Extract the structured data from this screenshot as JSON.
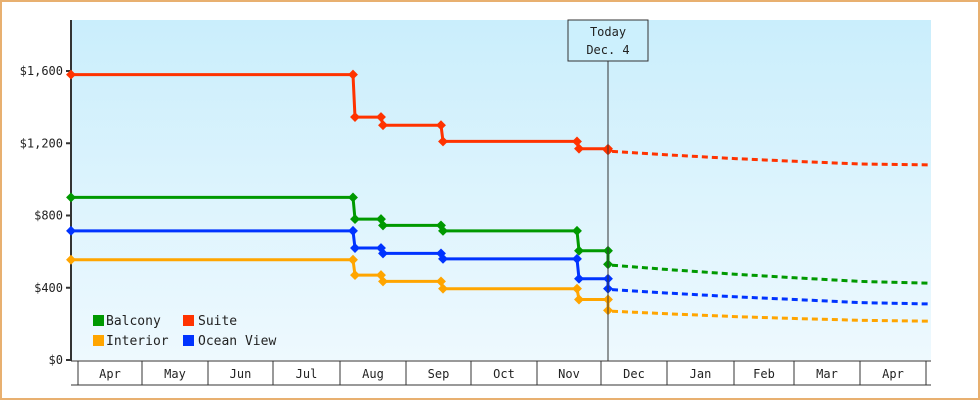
{
  "chart_data": {
    "type": "line",
    "title": "",
    "xlabel": "",
    "ylabel": "",
    "ylim": [
      0,
      1880
    ],
    "y_ticks": [
      "$0",
      "$400",
      "$800",
      "$1,200",
      "$1,600"
    ],
    "y_tick_values": [
      0,
      400,
      800,
      1200,
      1600
    ],
    "x_ticks": [
      "Apr",
      "May",
      "Jun",
      "Jul",
      "Aug",
      "Sep",
      "Oct",
      "Nov",
      "Dec",
      "Jan",
      "Feb",
      "Mar",
      "Apr"
    ],
    "grid": false,
    "legend_position": "bottom-left",
    "today_marker": {
      "line1": "Today",
      "line2": "Dec. 4"
    },
    "series": [
      {
        "name": "Balcony",
        "color": "#009900",
        "historical": [
          {
            "date": "Apr 1",
            "value": 900
          },
          {
            "date": "Aug 7",
            "value": 900
          },
          {
            "date": "Aug 8",
            "value": 780
          },
          {
            "date": "Aug 21",
            "value": 780
          },
          {
            "date": "Aug 22",
            "value": 745
          },
          {
            "date": "Sep 20",
            "value": 745
          },
          {
            "date": "Sep 21",
            "value": 715
          },
          {
            "date": "Nov 18",
            "value": 715
          },
          {
            "date": "Nov 19",
            "value": 605
          },
          {
            "date": "Dec 4",
            "value": 605
          },
          {
            "date": "Dec 4",
            "value": 530
          }
        ],
        "forecast": [
          {
            "date": "Dec 4",
            "value": 525
          },
          {
            "date": "Jan 1",
            "value": 500
          },
          {
            "date": "Feb 1",
            "value": 475
          },
          {
            "date": "Mar 1",
            "value": 455
          },
          {
            "date": "Apr 1",
            "value": 435
          },
          {
            "date": "Apr 15",
            "value": 425
          }
        ]
      },
      {
        "name": "Suite",
        "color": "#ff3300",
        "historical": [
          {
            "date": "Apr 1",
            "value": 1580
          },
          {
            "date": "Aug 7",
            "value": 1580
          },
          {
            "date": "Aug 8",
            "value": 1345
          },
          {
            "date": "Aug 21",
            "value": 1345
          },
          {
            "date": "Aug 22",
            "value": 1300
          },
          {
            "date": "Sep 20",
            "value": 1300
          },
          {
            "date": "Sep 21",
            "value": 1210
          },
          {
            "date": "Nov 18",
            "value": 1210
          },
          {
            "date": "Nov 19",
            "value": 1170
          },
          {
            "date": "Dec 4",
            "value": 1170
          },
          {
            "date": "Dec 4",
            "value": 1160
          }
        ],
        "forecast": [
          {
            "date": "Dec 4",
            "value": 1155
          },
          {
            "date": "Jan 1",
            "value": 1135
          },
          {
            "date": "Feb 1",
            "value": 1115
          },
          {
            "date": "Mar 1",
            "value": 1100
          },
          {
            "date": "Apr 1",
            "value": 1085
          },
          {
            "date": "Apr 15",
            "value": 1080
          }
        ]
      },
      {
        "name": "Interior",
        "color": "#ffa500",
        "historical": [
          {
            "date": "Apr 1",
            "value": 555
          },
          {
            "date": "Aug 7",
            "value": 555
          },
          {
            "date": "Aug 8",
            "value": 470
          },
          {
            "date": "Aug 21",
            "value": 470
          },
          {
            "date": "Aug 22",
            "value": 435
          },
          {
            "date": "Sep 20",
            "value": 435
          },
          {
            "date": "Sep 21",
            "value": 395
          },
          {
            "date": "Nov 18",
            "value": 395
          },
          {
            "date": "Nov 19",
            "value": 335
          },
          {
            "date": "Dec 4",
            "value": 335
          },
          {
            "date": "Dec 4",
            "value": 275
          }
        ],
        "forecast": [
          {
            "date": "Dec 4",
            "value": 270
          },
          {
            "date": "Jan 1",
            "value": 255
          },
          {
            "date": "Feb 1",
            "value": 240
          },
          {
            "date": "Mar 1",
            "value": 230
          },
          {
            "date": "Apr 1",
            "value": 220
          },
          {
            "date": "Apr 15",
            "value": 215
          }
        ]
      },
      {
        "name": "Ocean View",
        "color": "#0033ff",
        "historical": [
          {
            "date": "Apr 1",
            "value": 715
          },
          {
            "date": "Aug 7",
            "value": 715
          },
          {
            "date": "Aug 8",
            "value": 620
          },
          {
            "date": "Aug 21",
            "value": 620
          },
          {
            "date": "Aug 22",
            "value": 590
          },
          {
            "date": "Sep 20",
            "value": 590
          },
          {
            "date": "Sep 21",
            "value": 560
          },
          {
            "date": "Nov 18",
            "value": 560
          },
          {
            "date": "Nov 19",
            "value": 450
          },
          {
            "date": "Dec 4",
            "value": 450
          },
          {
            "date": "Dec 4",
            "value": 395
          }
        ],
        "forecast": [
          {
            "date": "Dec 4",
            "value": 390
          },
          {
            "date": "Jan 1",
            "value": 370
          },
          {
            "date": "Feb 1",
            "value": 350
          },
          {
            "date": "Mar 1",
            "value": 335
          },
          {
            "date": "Apr 1",
            "value": 318
          },
          {
            "date": "Apr 15",
            "value": 310
          }
        ]
      }
    ]
  },
  "legend": {
    "items": [
      {
        "label": "Balcony",
        "color": "#009900"
      },
      {
        "label": "Suite",
        "color": "#ff3300"
      },
      {
        "label": "Interior",
        "color": "#ffa500"
      },
      {
        "label": "Ocean View",
        "color": "#0033ff"
      }
    ]
  },
  "colors": {
    "frame_border": "#e8b070",
    "plot_bg_top": "#caeefc",
    "plot_bg_bottom": "#eef9fe",
    "axis": "#333333"
  }
}
